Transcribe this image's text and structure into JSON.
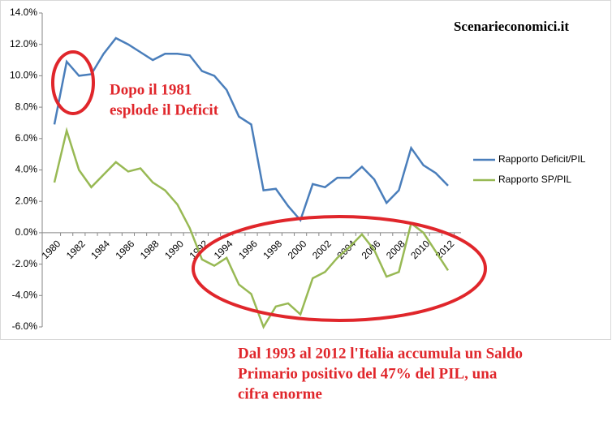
{
  "chart_data": {
    "type": "line",
    "annotations": [
      "Scenarieconomici.it",
      "Dopo il 1981",
      "esplode il Deficit",
      "Dal 1993 al 2012 l'Italia accumula un Saldo",
      "Primario positivo del 47% del PIL, una",
      "cifra enorme"
    ],
    "categories": [
      "1980",
      null,
      "1982",
      null,
      "1984",
      null,
      "1986",
      null,
      "1988",
      null,
      "1990",
      null,
      "1992",
      null,
      "1994",
      null,
      "1996",
      null,
      "1998",
      null,
      "2000",
      null,
      "2002",
      null,
      "2004",
      null,
      "2006",
      null,
      "2008",
      null,
      "2010",
      null,
      "2012"
    ],
    "series": [
      {
        "name": "Rapporto Deficit/PIL",
        "color": "#4a7ebb",
        "values": [
          6.9,
          10.9,
          10.0,
          10.1,
          11.4,
          12.4,
          12.0,
          11.5,
          11.0,
          11.4,
          11.4,
          11.3,
          10.3,
          10.0,
          9.1,
          7.4,
          6.9,
          2.7,
          2.8,
          1.7,
          0.8,
          3.1,
          2.9,
          3.5,
          3.5,
          4.2,
          3.4,
          1.9,
          2.7,
          5.4,
          4.3,
          3.8,
          3.0
        ]
      },
      {
        "name": "Rapporto SP/PIL",
        "color": "#98b954",
        "values": [
          3.2,
          6.5,
          4.0,
          2.9,
          3.7,
          4.5,
          3.9,
          4.1,
          3.2,
          2.7,
          1.8,
          0.3,
          -1.7,
          -2.1,
          -1.6,
          -3.3,
          -3.9,
          -6.0,
          -4.7,
          -4.5,
          -5.2,
          -2.9,
          -2.5,
          -1.6,
          -0.9,
          -0.1,
          -1.1,
          -2.8,
          -2.5,
          0.6,
          0.0,
          -1.2,
          -2.4
        ]
      }
    ],
    "ylim": [
      -6,
      14
    ],
    "yticks": [
      {
        "value": -6,
        "label": "-6.0%"
      },
      {
        "value": -4,
        "label": "-4.0%"
      },
      {
        "value": -2,
        "label": "-2.0%"
      },
      {
        "value": 0,
        "label": "0.0%"
      },
      {
        "value": 2,
        "label": "2.0%"
      },
      {
        "value": 4,
        "label": "4.0%"
      },
      {
        "value": 6,
        "label": "6.0%"
      },
      {
        "value": 8,
        "label": "8.0%"
      },
      {
        "value": 10,
        "label": "10.0%"
      },
      {
        "value": 12,
        "label": "12.0%"
      },
      {
        "value": 14,
        "label": "14.0%"
      }
    ],
    "grid": false,
    "legend": "right"
  }
}
